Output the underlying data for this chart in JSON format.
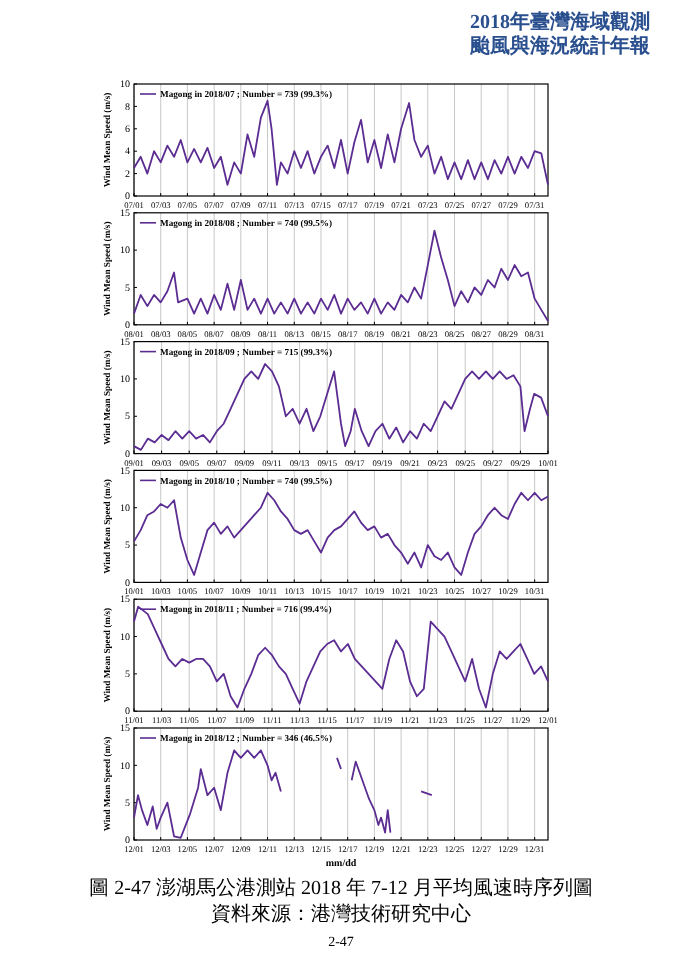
{
  "chart_data": [
    {
      "type": "line",
      "ylabel": "Wind Mean Speed (m/s)",
      "xlim": [
        "2018-07-01",
        "2018-08-01"
      ],
      "ylim": [
        0,
        10
      ],
      "yticks": [
        0,
        2,
        4,
        6,
        8,
        10
      ],
      "grid": "x",
      "legend": "top left",
      "line_style": "solid",
      "marker": "none",
      "annotations": [
        "2018年臺灣海域觀測",
        "颱風與海況統計年報"
      ],
      "xticks": [
        {
          "value": "2018-07-01",
          "label": "07/01"
        },
        {
          "value": "2018-07-03",
          "label": "07/03"
        },
        {
          "value": "2018-07-05",
          "label": "07/05"
        },
        {
          "value": "2018-07-07",
          "label": "07/07"
        },
        {
          "value": "2018-07-09",
          "label": "07/09"
        },
        {
          "value": "2018-07-11",
          "label": "07/11"
        },
        {
          "value": "2018-07-13",
          "label": "07/13"
        },
        {
          "value": "2018-07-15",
          "label": "07/15"
        },
        {
          "value": "2018-07-17",
          "label": "07/17"
        },
        {
          "value": "2018-07-19",
          "label": "07/19"
        },
        {
          "value": "2018-07-21",
          "label": "07/21"
        },
        {
          "value": "2018-07-23",
          "label": "07/23"
        },
        {
          "value": "2018-07-25",
          "label": "07/25"
        },
        {
          "value": "2018-07-27",
          "label": "07/27"
        },
        {
          "value": "2018-07-29",
          "label": "07/29"
        },
        {
          "value": "2018-07-31",
          "label": "07/31"
        }
      ],
      "series": [
        {
          "name": "Magong in 2018/07 ; Number = 739 (99.3%)",
          "color": "#5b2c91",
          "x": [
            "2018-07-01",
            "2018-07-01T12:00",
            "2018-07-02",
            "2018-07-02T12:00",
            "2018-07-03",
            "2018-07-03T12:00",
            "2018-07-04",
            "2018-07-04T12:00",
            "2018-07-05",
            "2018-07-05T12:00",
            "2018-07-06",
            "2018-07-06T12:00",
            "2018-07-07",
            "2018-07-07T12:00",
            "2018-07-08",
            "2018-07-08T12:00",
            "2018-07-09",
            "2018-07-09T12:00",
            "2018-07-10",
            "2018-07-10T12:00",
            "2018-07-11",
            "2018-07-11T07:12",
            "2018-07-11T16:48",
            "2018-07-12",
            "2018-07-12T12:00",
            "2018-07-13",
            "2018-07-13T12:00",
            "2018-07-14",
            "2018-07-14T12:00",
            "2018-07-15",
            "2018-07-15T12:00",
            "2018-07-16",
            "2018-07-16T12:00",
            "2018-07-17",
            "2018-07-17T12:00",
            "2018-07-18",
            "2018-07-18T12:00",
            "2018-07-19",
            "2018-07-19T12:00",
            "2018-07-20",
            "2018-07-20T12:00",
            "2018-07-21",
            "2018-07-21T14:24",
            "2018-07-22",
            "2018-07-22T12:00",
            "2018-07-23",
            "2018-07-23T12:00",
            "2018-07-24",
            "2018-07-24T12:00",
            "2018-07-25",
            "2018-07-25T12:00",
            "2018-07-26",
            "2018-07-26T12:00",
            "2018-07-27",
            "2018-07-27T12:00",
            "2018-07-28",
            "2018-07-28T12:00",
            "2018-07-29",
            "2018-07-29T12:00",
            "2018-07-30",
            "2018-07-30T12:00",
            "2018-07-31",
            "2018-07-31T12:00",
            "2018-08-01"
          ],
          "values": [
            2.5,
            3.5,
            2,
            4,
            3,
            4.5,
            3.5,
            5,
            3,
            4.2,
            3,
            4.3,
            2.5,
            3.5,
            1,
            3,
            2,
            5.5,
            3.5,
            7,
            8.5,
            6,
            1,
            3,
            2,
            4,
            2.5,
            4,
            2,
            3.5,
            4.5,
            2.5,
            5,
            2,
            4.8,
            6.8,
            3,
            5,
            2.5,
            5.5,
            3,
            6,
            8.3,
            5,
            3.5,
            4.5,
            2,
            3.5,
            1.5,
            3,
            1.5,
            3.2,
            1.5,
            3,
            1.5,
            3.2,
            2,
            3.5,
            2,
            3.5,
            2.5,
            4,
            3.8,
            1
          ]
        }
      ]
    },
    {
      "type": "line",
      "ylabel": "Wind Mean Speed (m/s)",
      "xlim": [
        "2018-08-01",
        "2018-09-01"
      ],
      "ylim": [
        0,
        15
      ],
      "yticks": [
        0,
        5,
        10,
        15
      ],
      "grid": "x",
      "legend": "top left",
      "line_style": "solid",
      "marker": "none",
      "xticks": [
        {
          "value": "2018-08-01",
          "label": "08/01"
        },
        {
          "value": "2018-08-03",
          "label": "08/03"
        },
        {
          "value": "2018-08-05",
          "label": "08/05"
        },
        {
          "value": "2018-08-07",
          "label": "08/07"
        },
        {
          "value": "2018-08-09",
          "label": "08/09"
        },
        {
          "value": "2018-08-11",
          "label": "08/11"
        },
        {
          "value": "2018-08-13",
          "label": "08/13"
        },
        {
          "value": "2018-08-15",
          "label": "08/15"
        },
        {
          "value": "2018-08-17",
          "label": "08/17"
        },
        {
          "value": "2018-08-19",
          "label": "08/19"
        },
        {
          "value": "2018-08-21",
          "label": "08/21"
        },
        {
          "value": "2018-08-23",
          "label": "08/23"
        },
        {
          "value": "2018-08-25",
          "label": "08/25"
        },
        {
          "value": "2018-08-27",
          "label": "08/27"
        },
        {
          "value": "2018-08-29",
          "label": "08/29"
        },
        {
          "value": "2018-08-31",
          "label": "08/31"
        }
      ],
      "series": [
        {
          "name": "Magong in 2018/08 ; Number = 740 (99.5%)",
          "color": "#5b2c91",
          "x": [
            "2018-08-01",
            "2018-08-01T12:00",
            "2018-08-02",
            "2018-08-02T12:00",
            "2018-08-03",
            "2018-08-03T12:00",
            "2018-08-04",
            "2018-08-04T07:12",
            "2018-08-05",
            "2018-08-05T12:00",
            "2018-08-06",
            "2018-08-06T12:00",
            "2018-08-07",
            "2018-08-07T12:00",
            "2018-08-08",
            "2018-08-08T12:00",
            "2018-08-09",
            "2018-08-09T12:00",
            "2018-08-10",
            "2018-08-10T12:00",
            "2018-08-11",
            "2018-08-11T12:00",
            "2018-08-12",
            "2018-08-12T12:00",
            "2018-08-13",
            "2018-08-13T12:00",
            "2018-08-14",
            "2018-08-14T12:00",
            "2018-08-15",
            "2018-08-15T12:00",
            "2018-08-16",
            "2018-08-16T12:00",
            "2018-08-17",
            "2018-08-17T12:00",
            "2018-08-18",
            "2018-08-18T12:00",
            "2018-08-19",
            "2018-08-19T12:00",
            "2018-08-20",
            "2018-08-20T12:00",
            "2018-08-21",
            "2018-08-21T12:00",
            "2018-08-22",
            "2018-08-22T12:00",
            "2018-08-23",
            "2018-08-23T12:00",
            "2018-08-24",
            "2018-08-24T12:00",
            "2018-08-25",
            "2018-08-25T12:00",
            "2018-08-26",
            "2018-08-26T12:00",
            "2018-08-27",
            "2018-08-27T12:00",
            "2018-08-28",
            "2018-08-28T12:00",
            "2018-08-29",
            "2018-08-29T12:00",
            "2018-08-30",
            "2018-08-30T12:00",
            "2018-08-31",
            "2018-08-31T12:00",
            "2018-09-01"
          ],
          "values": [
            1.5,
            4,
            2.5,
            4,
            3,
            4.5,
            7,
            3,
            3.5,
            1.5,
            3.5,
            1.5,
            4,
            2,
            5.5,
            2,
            6,
            2,
            3.5,
            1.5,
            3.5,
            1.5,
            3,
            1.5,
            3.5,
            1.5,
            3,
            1.5,
            3.5,
            2,
            4,
            1.5,
            3.5,
            2,
            3,
            1.5,
            3.5,
            1.5,
            3,
            2,
            4,
            3,
            5,
            3.5,
            8,
            12.6,
            9,
            6,
            2.5,
            4.5,
            3,
            5,
            4,
            6,
            5,
            7.5,
            6,
            8,
            6.5,
            7,
            3.5,
            2,
            0.5
          ]
        }
      ]
    },
    {
      "type": "line",
      "ylabel": "Wind Mean Speed (m/s)",
      "xlim": [
        "2018-09-01",
        "2018-10-01"
      ],
      "ylim": [
        0,
        15
      ],
      "yticks": [
        0,
        5,
        10,
        15
      ],
      "grid": "x",
      "legend": "top left",
      "line_style": "solid",
      "marker": "none",
      "xticks": [
        {
          "value": "2018-09-01",
          "label": "09/01"
        },
        {
          "value": "2018-09-03",
          "label": "09/03"
        },
        {
          "value": "2018-09-05",
          "label": "09/05"
        },
        {
          "value": "2018-09-07",
          "label": "09/07"
        },
        {
          "value": "2018-09-09",
          "label": "09/09"
        },
        {
          "value": "2018-09-11",
          "label": "09/11"
        },
        {
          "value": "2018-09-13",
          "label": "09/13"
        },
        {
          "value": "2018-09-15",
          "label": "09/15"
        },
        {
          "value": "2018-09-17",
          "label": "09/17"
        },
        {
          "value": "2018-09-19",
          "label": "09/19"
        },
        {
          "value": "2018-09-21",
          "label": "09/21"
        },
        {
          "value": "2018-09-23",
          "label": "09/23"
        },
        {
          "value": "2018-09-25",
          "label": "09/25"
        },
        {
          "value": "2018-09-27",
          "label": "09/27"
        },
        {
          "value": "2018-09-29",
          "label": "09/29"
        },
        {
          "value": "2018-10-01",
          "label": "10/01"
        }
      ],
      "series": [
        {
          "name": "Magong in 2018/09 ; Number = 715 (99.3%)",
          "color": "#5b2c91",
          "x": [
            "2018-09-01",
            "2018-09-01T12:00",
            "2018-09-02",
            "2018-09-02T12:00",
            "2018-09-03",
            "2018-09-03T12:00",
            "2018-09-04",
            "2018-09-04T12:00",
            "2018-09-05",
            "2018-09-05T12:00",
            "2018-09-06",
            "2018-09-06T12:00",
            "2018-09-07",
            "2018-09-07T12:00",
            "2018-09-08",
            "2018-09-08T12:00",
            "2018-09-09",
            "2018-09-09T12:00",
            "2018-09-10",
            "2018-09-10T12:00",
            "2018-09-11",
            "2018-09-11T12:00",
            "2018-09-12",
            "2018-09-12T12:00",
            "2018-09-13",
            "2018-09-13T12:00",
            "2018-09-14",
            "2018-09-14T12:00",
            "2018-09-15",
            "2018-09-15T12:00",
            "2018-09-16",
            "2018-09-16T07:12",
            "2018-09-16T16:48",
            "2018-09-17",
            "2018-09-17T12:00",
            "2018-09-18",
            "2018-09-18T12:00",
            "2018-09-19",
            "2018-09-19T12:00",
            "2018-09-20",
            "2018-09-20T12:00",
            "2018-09-21",
            "2018-09-21T12:00",
            "2018-09-22",
            "2018-09-22T12:00",
            "2018-09-23",
            "2018-09-23T12:00",
            "2018-09-24",
            "2018-09-24T12:00",
            "2018-09-25",
            "2018-09-25T12:00",
            "2018-09-26",
            "2018-09-26T12:00",
            "2018-09-27",
            "2018-09-27T12:00",
            "2018-09-28",
            "2018-09-28T12:00",
            "2018-09-29",
            "2018-09-29T07:12",
            "2018-09-29T16:48",
            "2018-09-30",
            "2018-09-30T12:00",
            "2018-10-01"
          ],
          "values": [
            1,
            0.5,
            2,
            1.5,
            2.5,
            1.8,
            3,
            2,
            3,
            2,
            2.5,
            1.5,
            3,
            4,
            6,
            8,
            10,
            11,
            10,
            12,
            11,
            9,
            5,
            6,
            4,
            6,
            3,
            5,
            8,
            11,
            4,
            1,
            3,
            6,
            3,
            1,
            3,
            4,
            2,
            3.5,
            1.5,
            3,
            2,
            4,
            3,
            5,
            7,
            6,
            8,
            10,
            11,
            10,
            11,
            10,
            11,
            10,
            10.5,
            9,
            3,
            6,
            8,
            7.5,
            5
          ]
        }
      ]
    },
    {
      "type": "line",
      "ylabel": "Wind Mean Speed (m/s)",
      "xlim": [
        "2018-10-01",
        "2018-11-01"
      ],
      "ylim": [
        0,
        15
      ],
      "yticks": [
        0,
        5,
        10,
        15
      ],
      "grid": "x",
      "legend": "top left",
      "line_style": "solid",
      "marker": "none",
      "xticks": [
        {
          "value": "2018-10-01",
          "label": "10/01"
        },
        {
          "value": "2018-10-03",
          "label": "10/03"
        },
        {
          "value": "2018-10-05",
          "label": "10/05"
        },
        {
          "value": "2018-10-07",
          "label": "10/07"
        },
        {
          "value": "2018-10-09",
          "label": "10/09"
        },
        {
          "value": "2018-10-11",
          "label": "10/11"
        },
        {
          "value": "2018-10-13",
          "label": "10/13"
        },
        {
          "value": "2018-10-15",
          "label": "10/15"
        },
        {
          "value": "2018-10-17",
          "label": "10/17"
        },
        {
          "value": "2018-10-19",
          "label": "10/19"
        },
        {
          "value": "2018-10-21",
          "label": "10/21"
        },
        {
          "value": "2018-10-23",
          "label": "10/23"
        },
        {
          "value": "2018-10-25",
          "label": "10/25"
        },
        {
          "value": "2018-10-27",
          "label": "10/27"
        },
        {
          "value": "2018-10-29",
          "label": "10/29"
        },
        {
          "value": "2018-10-31",
          "label": "10/31"
        }
      ],
      "series": [
        {
          "name": "Magong in 2018/10 ; Number = 740 (99.5%)",
          "color": "#5b2c91",
          "x": [
            "2018-10-01",
            "2018-10-01T12:00",
            "2018-10-02",
            "2018-10-02T12:00",
            "2018-10-03",
            "2018-10-03T12:00",
            "2018-10-04",
            "2018-10-04T12:00",
            "2018-10-05",
            "2018-10-05T12:00",
            "2018-10-06",
            "2018-10-06T12:00",
            "2018-10-07",
            "2018-10-07T12:00",
            "2018-10-08",
            "2018-10-08T12:00",
            "2018-10-09",
            "2018-10-09T12:00",
            "2018-10-10",
            "2018-10-10T12:00",
            "2018-10-11",
            "2018-10-11T12:00",
            "2018-10-12",
            "2018-10-12T12:00",
            "2018-10-13",
            "2018-10-13T12:00",
            "2018-10-14",
            "2018-10-14T12:00",
            "2018-10-15",
            "2018-10-15T12:00",
            "2018-10-16",
            "2018-10-16T12:00",
            "2018-10-17",
            "2018-10-17T12:00",
            "2018-10-18",
            "2018-10-18T12:00",
            "2018-10-19",
            "2018-10-19T12:00",
            "2018-10-20",
            "2018-10-20T12:00",
            "2018-10-21",
            "2018-10-21T12:00",
            "2018-10-22",
            "2018-10-22T12:00",
            "2018-10-23",
            "2018-10-23T12:00",
            "2018-10-24",
            "2018-10-24T12:00",
            "2018-10-25",
            "2018-10-25T12:00",
            "2018-10-26",
            "2018-10-26T12:00",
            "2018-10-27",
            "2018-10-27T12:00",
            "2018-10-28",
            "2018-10-28T12:00",
            "2018-10-29",
            "2018-10-29T12:00",
            "2018-10-30",
            "2018-10-30T12:00",
            "2018-10-31",
            "2018-10-31T12:00",
            "2018-11-01"
          ],
          "values": [
            5.5,
            7,
            9,
            9.5,
            10.5,
            10,
            11,
            6,
            3,
            1,
            4,
            7,
            8,
            6.5,
            7.5,
            6,
            7,
            8,
            9,
            10,
            12,
            11,
            9.5,
            8.5,
            7,
            6.5,
            7,
            5.5,
            4,
            6,
            7,
            7.5,
            8.5,
            9.5,
            8,
            7,
            7.5,
            6,
            6.5,
            5,
            4,
            2.5,
            4,
            2,
            5,
            3.5,
            3,
            4,
            2,
            1,
            4,
            6.5,
            7.5,
            9,
            10,
            9,
            8.5,
            10.5,
            12,
            11,
            12,
            11,
            11.5
          ]
        }
      ]
    },
    {
      "type": "line",
      "ylabel": "Wind Mean Speed (m/s)",
      "xlim": [
        "2018-11-01",
        "2018-12-01"
      ],
      "ylim": [
        0,
        15
      ],
      "yticks": [
        0,
        5,
        10,
        15
      ],
      "grid": "x",
      "legend": "top left",
      "line_style": "solid",
      "marker": "none",
      "xticks": [
        {
          "value": "2018-11-01",
          "label": "11/01"
        },
        {
          "value": "2018-11-03",
          "label": "11/03"
        },
        {
          "value": "2018-11-05",
          "label": "11/05"
        },
        {
          "value": "2018-11-07",
          "label": "11/07"
        },
        {
          "value": "2018-11-09",
          "label": "11/09"
        },
        {
          "value": "2018-11-11",
          "label": "11/11"
        },
        {
          "value": "2018-11-13",
          "label": "11/13"
        },
        {
          "value": "2018-11-15",
          "label": "11/15"
        },
        {
          "value": "2018-11-17",
          "label": "11/17"
        },
        {
          "value": "2018-11-19",
          "label": "11/19"
        },
        {
          "value": "2018-11-21",
          "label": "11/21"
        },
        {
          "value": "2018-11-23",
          "label": "11/23"
        },
        {
          "value": "2018-11-25",
          "label": "11/25"
        },
        {
          "value": "2018-11-27",
          "label": "11/27"
        },
        {
          "value": "2018-11-29",
          "label": "11/29"
        },
        {
          "value": "2018-12-01",
          "label": "12/01"
        }
      ],
      "series": [
        {
          "name": "Magong in 2018/11 ; Number = 716 (99.4%)",
          "color": "#5b2c91",
          "x": [
            "2018-11-01",
            "2018-11-01T07:12",
            "2018-11-02",
            "2018-11-02T12:00",
            "2018-11-03",
            "2018-11-03T12:00",
            "2018-11-04",
            "2018-11-04T12:00",
            "2018-11-05",
            "2018-11-05T12:00",
            "2018-11-06",
            "2018-11-06T12:00",
            "2018-11-07",
            "2018-11-07T12:00",
            "2018-11-08",
            "2018-11-08T12:00",
            "2018-11-09",
            "2018-11-09T12:00",
            "2018-11-10",
            "2018-11-10T12:00",
            "2018-11-11",
            "2018-11-11T12:00",
            "2018-11-12",
            "2018-11-12T12:00",
            "2018-11-13",
            "2018-11-13T12:00",
            "2018-11-14",
            "2018-11-14T12:00",
            "2018-11-15",
            "2018-11-15T12:00",
            "2018-11-16",
            "2018-11-16T12:00",
            "2018-11-17",
            "2018-11-17T12:00",
            "2018-11-18",
            "2018-11-18T12:00",
            "2018-11-19",
            "2018-11-19T12:00",
            "2018-11-20",
            "2018-11-20T12:00",
            "2018-11-21",
            "2018-11-21T12:00",
            "2018-11-22",
            "2018-11-22T12:00",
            "2018-11-23",
            "2018-11-23T12:00",
            "2018-11-24",
            "2018-11-24T12:00",
            "2018-11-25",
            "2018-11-25T12:00",
            "2018-11-26",
            "2018-11-26T12:00",
            "2018-11-27",
            "2018-11-27T12:00",
            "2018-11-28",
            "2018-11-28T12:00",
            "2018-11-29",
            "2018-11-29T12:00",
            "2018-11-30",
            "2018-11-30T12:00",
            "2018-12-01"
          ],
          "values": [
            12,
            14,
            13,
            11,
            9,
            7,
            6,
            7,
            6.5,
            7,
            7,
            6,
            4,
            5,
            2,
            0.5,
            3,
            5,
            7.5,
            8.5,
            7.5,
            6,
            5,
            3,
            1,
            4,
            6,
            8,
            9,
            9.5,
            8,
            9,
            7,
            6,
            5,
            4,
            3,
            7,
            9.5,
            8,
            4,
            2,
            3,
            12,
            11,
            10,
            8,
            6,
            4,
            7,
            3,
            0.5,
            5,
            8,
            7,
            8,
            9,
            7,
            5,
            6,
            4
          ]
        }
      ]
    },
    {
      "type": "line",
      "ylabel": "Wind Mean Speed (m/s)",
      "xlabel": "mm/dd",
      "xlim": [
        "2018-12-01",
        "2019-01-01"
      ],
      "ylim": [
        0,
        15
      ],
      "yticks": [
        0,
        5,
        10,
        15
      ],
      "grid": "x",
      "legend": "top left",
      "line_style": "solid",
      "marker": "none",
      "annotations": [
        "圖 2-47 澎湖馬公港測站 2018 年 7-12 月平均風速時序列圖",
        "資料來源：港灣技術研究中心",
        "2-47"
      ],
      "xticks": [
        {
          "value": "2018-12-01",
          "label": "12/01"
        },
        {
          "value": "2018-12-03",
          "label": "12/03"
        },
        {
          "value": "2018-12-05",
          "label": "12/05"
        },
        {
          "value": "2018-12-07",
          "label": "12/07"
        },
        {
          "value": "2018-12-09",
          "label": "12/09"
        },
        {
          "value": "2018-12-11",
          "label": "12/11"
        },
        {
          "value": "2018-12-13",
          "label": "12/13"
        },
        {
          "value": "2018-12-15",
          "label": "12/15"
        },
        {
          "value": "2018-12-17",
          "label": "12/17"
        },
        {
          "value": "2018-12-19",
          "label": "12/19"
        },
        {
          "value": "2018-12-21",
          "label": "12/21"
        },
        {
          "value": "2018-12-23",
          "label": "12/23"
        },
        {
          "value": "2018-12-25",
          "label": "12/25"
        },
        {
          "value": "2018-12-27",
          "label": "12/27"
        },
        {
          "value": "2018-12-29",
          "label": "12/29"
        },
        {
          "value": "2018-12-31",
          "label": "12/31"
        }
      ],
      "series": [
        {
          "name": "Magong in 2018/12 ; Number = 346 (46.5%)",
          "color": "#5b2c91",
          "x": [
            "2018-12-01",
            "2018-12-01T07:12",
            "2018-12-01T14:24",
            "2018-12-02",
            "2018-12-02T09:36",
            "2018-12-02T16:48",
            "2018-12-03",
            "2018-12-03T12:00",
            "2018-12-04",
            "2018-12-04T12:00",
            "2018-12-05T04:48",
            "2018-12-05T19:12",
            "2018-12-06",
            "2018-12-06T12:00",
            "2018-12-07",
            "2018-12-07T12:00",
            "2018-12-08",
            "2018-12-08T12:00",
            "2018-12-09",
            "2018-12-09T12:00",
            "2018-12-10",
            "2018-12-10T12:00",
            "2018-12-11",
            "2018-12-11T07:12",
            "2018-12-11T14:24",
            "2018-12-12",
            "2018-12-14",
            "2018-12-16T04:48",
            "2018-12-16T12:00",
            "2018-12-16T19:12",
            "2018-12-17T07:12",
            "2018-12-17T14:24",
            "2018-12-17T21:36",
            "2018-12-18T02:24",
            "2018-12-18T14:24",
            "2018-12-19",
            "2018-12-19T07:12",
            "2018-12-19T12:00",
            "2018-12-19T19:12",
            "2018-12-20",
            "2018-12-20T04:48",
            "2018-12-21",
            "2018-12-22T12:00",
            "2018-12-23T07:12"
          ],
          "values": [
            3,
            6,
            4,
            2,
            4.5,
            1.5,
            3,
            5,
            0.5,
            0.3,
            3.5,
            7,
            9.5,
            6,
            7,
            4,
            9,
            12,
            11,
            12,
            11,
            12,
            10,
            8,
            9,
            6.5,
            null,
            11,
            9.5,
            null,
            8,
            10.5,
            9,
            8,
            5.5,
            4,
            2,
            3,
            1,
            4,
            1,
            null,
            6.5,
            6
          ]
        }
      ]
    }
  ]
}
